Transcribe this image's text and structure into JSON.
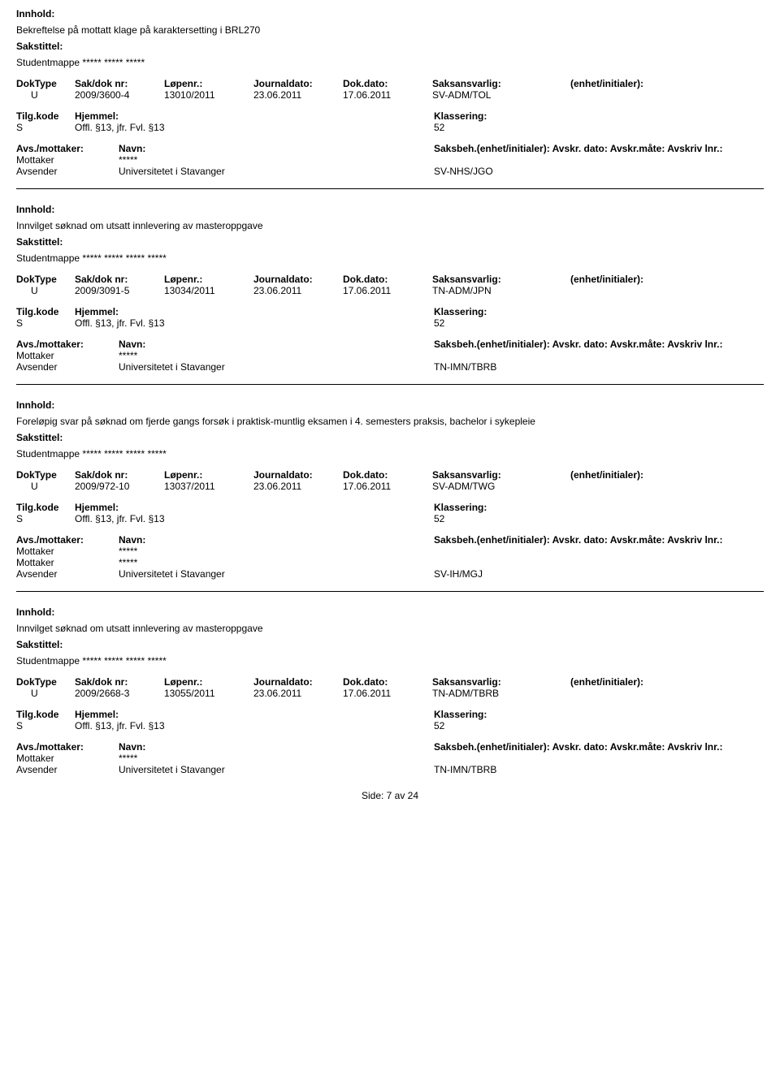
{
  "labels": {
    "innhold": "Innhold:",
    "sakstittel": "Sakstittel:",
    "doktype": "DokType",
    "sakdok": "Sak/dok nr:",
    "lopenr": "Løpenr.:",
    "jdato": "Journaldato:",
    "ddato": "Dok.dato:",
    "saksans": "Saksansvarlig:",
    "enhet": "(enhet/initialer):",
    "tilgkode": "Tilg.kode",
    "hjemmel": "Hjemmel:",
    "klass": "Klassering:",
    "avsmott": "Avs./mottaker:",
    "navn": "Navn:",
    "saksbeh_line": "Saksbeh.(enhet/initialer): Avskr. dato:  Avskr.måte: Avskriv lnr.:",
    "mottaker": "Mottaker",
    "avsender": "Avsender"
  },
  "entries": [
    {
      "innhold": "Bekreftelse på mottatt klage på karaktersetting i BRL270",
      "sakstittel": "Studentmappe ***** ***** *****",
      "doktype": "U",
      "sakdok": "2009/3600-4",
      "lopenr": "13010/2011",
      "jdato": "23.06.2011",
      "ddato": "17.06.2011",
      "saksans": "SV-ADM/TOL",
      "tilgkode": "S",
      "hjemmel": "Offl. §13, jfr. Fvl. §13",
      "klass": "52",
      "parties": [
        {
          "role": "Mottaker",
          "navn": "*****",
          "saksbeh": ""
        },
        {
          "role": "Avsender",
          "navn": "Universitetet i Stavanger",
          "saksbeh": "SV-NHS/JGO"
        }
      ]
    },
    {
      "innhold": "Innvilget søknad om utsatt innlevering av masteroppgave",
      "sakstittel": "Studentmappe ***** ***** ***** *****",
      "doktype": "U",
      "sakdok": "2009/3091-5",
      "lopenr": "13034/2011",
      "jdato": "23.06.2011",
      "ddato": "17.06.2011",
      "saksans": "TN-ADM/JPN",
      "tilgkode": "S",
      "hjemmel": "Offl. §13, jfr. Fvl. §13",
      "klass": "52",
      "parties": [
        {
          "role": "Mottaker",
          "navn": "*****",
          "saksbeh": ""
        },
        {
          "role": "Avsender",
          "navn": "Universitetet i Stavanger",
          "saksbeh": "TN-IMN/TBRB"
        }
      ]
    },
    {
      "innhold": "Foreløpig svar på søknad om fjerde gangs forsøk i praktisk-muntlig eksamen i 4. semesters praksis, bachelor i sykepleie",
      "sakstittel": "Studentmappe ***** ***** ***** *****",
      "doktype": "U",
      "sakdok": "2009/972-10",
      "lopenr": "13037/2011",
      "jdato": "23.06.2011",
      "ddato": "17.06.2011",
      "saksans": "SV-ADM/TWG",
      "tilgkode": "S",
      "hjemmel": "Offl. §13, jfr. Fvl. §13",
      "klass": "52",
      "parties": [
        {
          "role": "Mottaker",
          "navn": "*****",
          "saksbeh": ""
        },
        {
          "role": "Mottaker",
          "navn": "*****",
          "saksbeh": ""
        },
        {
          "role": "Avsender",
          "navn": "Universitetet i Stavanger",
          "saksbeh": "SV-IH/MGJ"
        }
      ]
    },
    {
      "innhold": "Innvilget søknad om utsatt innlevering av masteroppgave",
      "sakstittel": "Studentmappe ***** ***** ***** *****",
      "doktype": "U",
      "sakdok": "2009/2668-3",
      "lopenr": "13055/2011",
      "jdato": "23.06.2011",
      "ddato": "17.06.2011",
      "saksans": "TN-ADM/TBRB",
      "tilgkode": "S",
      "hjemmel": "Offl. §13, jfr. Fvl. §13",
      "klass": "52",
      "parties": [
        {
          "role": "Mottaker",
          "navn": "*****",
          "saksbeh": ""
        },
        {
          "role": "Avsender",
          "navn": "Universitetet i Stavanger",
          "saksbeh": "TN-IMN/TBRB"
        }
      ]
    }
  ],
  "footer": "Side: 7 av 24"
}
